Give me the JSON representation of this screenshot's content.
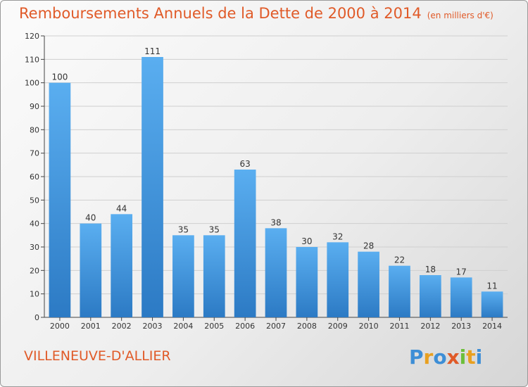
{
  "header": {
    "title": "Remboursements Annuels de la Dette de 2000 à 2014",
    "unit": "(en milliers d'€)"
  },
  "footer": {
    "commune": "VILLENEUVE-D'ALLIER",
    "brand": "Proxiti"
  },
  "colors": {
    "title": "#e05a28",
    "bar_top": "#5aaef0",
    "bar_bottom": "#2c7ac4",
    "grid": "#cfcfcf"
  },
  "chart_data": {
    "type": "bar",
    "categories": [
      "2000",
      "2001",
      "2002",
      "2003",
      "2004",
      "2005",
      "2006",
      "2007",
      "2008",
      "2009",
      "2010",
      "2011",
      "2012",
      "2013",
      "2014"
    ],
    "values": [
      100,
      40,
      44,
      111,
      35,
      35,
      63,
      38,
      30,
      32,
      28,
      22,
      18,
      17,
      11
    ],
    "ylim": [
      0,
      120
    ],
    "yticks": [
      0,
      10,
      20,
      30,
      40,
      50,
      60,
      70,
      80,
      90,
      100,
      110,
      120
    ],
    "grid": true,
    "data_labels": true
  }
}
